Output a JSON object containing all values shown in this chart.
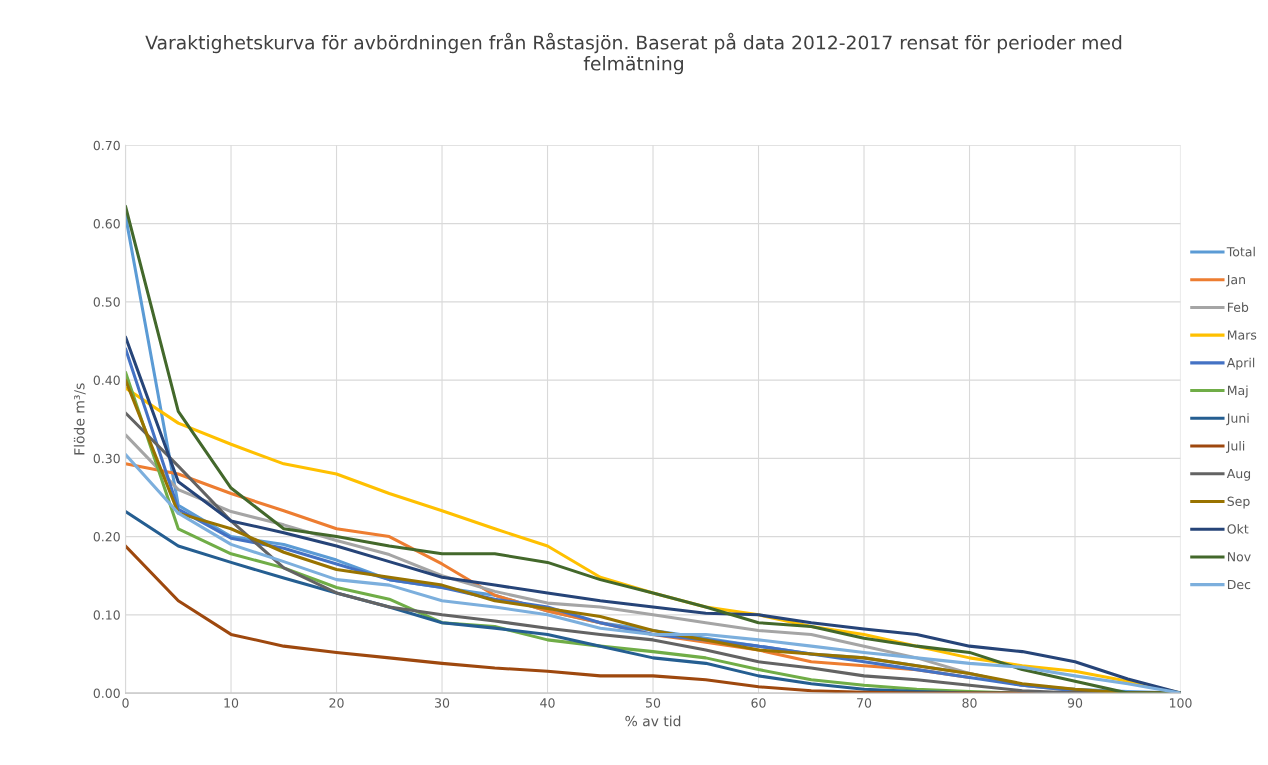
{
  "chart_data": {
    "type": "line",
    "title": "Varaktighetskurva för avbördningen från Råstasjön. Baserat på data 2012-2017 rensat för perioder med\nfelmätning",
    "xlabel": "% av tid",
    "ylabel": "Flöde m³/s",
    "x": [
      0,
      5,
      10,
      15,
      20,
      25,
      30,
      35,
      40,
      45,
      50,
      55,
      60,
      65,
      70,
      75,
      80,
      85,
      90,
      95,
      100
    ],
    "xlim": [
      0,
      100
    ],
    "xticks": [
      0,
      10,
      20,
      30,
      40,
      50,
      60,
      70,
      80,
      90,
      100
    ],
    "ylim": [
      0,
      0.7
    ],
    "yticks": [
      {
        "value": 0,
        "label": "0.00"
      },
      {
        "value": 0.1,
        "label": "0.10"
      },
      {
        "value": 0.2,
        "label": "0.20"
      },
      {
        "value": 0.3,
        "label": "0.30"
      },
      {
        "value": 0.4,
        "label": "0.40"
      },
      {
        "value": 0.5,
        "label": "0.50"
      },
      {
        "value": 0.6,
        "label": "0.60"
      },
      {
        "value": 0.7,
        "label": "0.70"
      }
    ],
    "grid": true,
    "legend": "right",
    "marker": "none",
    "line_style": "solid",
    "series": [
      {
        "name": "Total",
        "color": "#5b9bd5",
        "values": [
          0.61,
          0.24,
          0.2,
          0.19,
          0.17,
          0.145,
          0.135,
          0.125,
          0.105,
          0.09,
          0.08,
          0.07,
          0.06,
          0.05,
          0.045,
          0.035,
          0.025,
          0.01,
          0.005,
          0.002,
          0
        ]
      },
      {
        "name": "Jan",
        "color": "#ed7d31",
        "values": [
          0.293,
          0.28,
          0.255,
          0.233,
          0.21,
          0.2,
          0.165,
          0.125,
          0.105,
          0.09,
          0.075,
          0.065,
          0.055,
          0.04,
          0.035,
          0.03,
          0.02,
          null,
          null,
          null,
          null
        ]
      },
      {
        "name": "Feb",
        "color": "#a5a5a5",
        "values": [
          0.33,
          0.26,
          0.232,
          0.215,
          0.195,
          0.177,
          0.15,
          0.13,
          0.115,
          0.11,
          0.1,
          0.09,
          0.08,
          0.075,
          0.06,
          0.045,
          0.025,
          0.01,
          0.003,
          0,
          0
        ]
      },
      {
        "name": "Mars",
        "color": "#ffc000",
        "values": [
          0.39,
          0.345,
          0.318,
          0.293,
          0.28,
          0.255,
          0.233,
          0.21,
          0.188,
          0.148,
          0.128,
          0.11,
          0.1,
          0.085,
          0.075,
          0.06,
          0.045,
          0.035,
          0.028,
          0.015,
          0
        ]
      },
      {
        "name": "April",
        "color": "#4472c4",
        "values": [
          0.44,
          0.235,
          0.198,
          0.185,
          0.165,
          0.145,
          0.135,
          0.12,
          0.11,
          0.09,
          0.075,
          0.068,
          0.06,
          0.05,
          0.04,
          0.03,
          0.02,
          0.01,
          0.003,
          0,
          0
        ]
      },
      {
        "name": "Maj",
        "color": "#70ad47",
        "values": [
          0.41,
          0.21,
          0.178,
          0.16,
          0.135,
          0.12,
          0.09,
          0.085,
          0.068,
          0.06,
          0.053,
          0.045,
          0.03,
          0.017,
          0.01,
          0.005,
          0.002,
          0,
          0,
          0,
          0
        ]
      },
      {
        "name": "Juni",
        "color": "#255e91",
        "values": [
          0.232,
          0.188,
          0.167,
          0.147,
          0.128,
          0.11,
          0.09,
          0.083,
          0.075,
          0.06,
          0.045,
          0.038,
          0.022,
          0.012,
          0.005,
          0.002,
          0,
          0,
          0,
          0,
          0
        ]
      },
      {
        "name": "Juli",
        "color": "#9e480e",
        "values": [
          0.188,
          0.118,
          0.075,
          0.06,
          0.052,
          0.045,
          0.038,
          0.032,
          0.028,
          0.022,
          0.022,
          0.017,
          0.008,
          0.003,
          0.001,
          0,
          0,
          0,
          0,
          0,
          0
        ]
      },
      {
        "name": "Aug",
        "color": "#636363",
        "values": [
          0.358,
          0.29,
          0.22,
          0.16,
          0.128,
          0.11,
          0.1,
          0.092,
          0.083,
          0.075,
          0.068,
          0.055,
          0.04,
          0.032,
          0.022,
          0.017,
          0.01,
          0.003,
          0,
          0,
          0
        ]
      },
      {
        "name": "Sep",
        "color": "#997300",
        "values": [
          0.4,
          0.23,
          0.21,
          0.18,
          0.158,
          0.148,
          0.138,
          0.118,
          0.108,
          0.098,
          0.08,
          0.068,
          0.055,
          0.05,
          0.045,
          0.035,
          0.025,
          0.012,
          0.005,
          0,
          0
        ]
      },
      {
        "name": "Okt",
        "color": "#264478",
        "values": [
          0.455,
          0.27,
          0.22,
          0.205,
          0.188,
          0.168,
          0.148,
          0.138,
          0.128,
          0.118,
          0.11,
          0.102,
          0.1,
          0.09,
          0.082,
          0.075,
          0.06,
          0.053,
          0.04,
          0.018,
          0
        ]
      },
      {
        "name": "Nov",
        "color": "#43682b",
        "values": [
          0.622,
          0.36,
          0.262,
          0.21,
          0.2,
          0.188,
          0.178,
          0.178,
          0.167,
          0.145,
          0.128,
          0.11,
          0.09,
          0.085,
          0.07,
          0.06,
          0.052,
          0.03,
          0.015,
          0,
          0
        ]
      },
      {
        "name": "Dec",
        "color": "#7cafdd",
        "values": [
          0.305,
          0.23,
          0.19,
          0.168,
          0.145,
          0.138,
          0.118,
          0.11,
          0.1,
          0.083,
          0.075,
          0.075,
          0.068,
          0.06,
          0.052,
          0.045,
          0.038,
          0.033,
          0.022,
          0.012,
          0
        ]
      }
    ]
  }
}
